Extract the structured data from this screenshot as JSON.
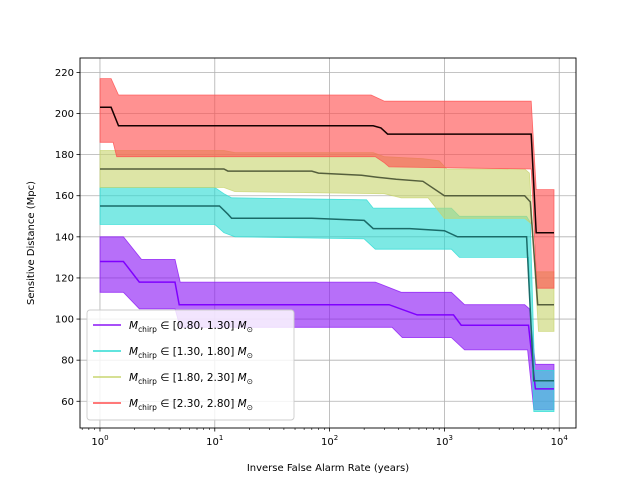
{
  "chart_data": {
    "type": "line",
    "xlabel": "Inverse False Alarm Rate (years)",
    "ylabel": "Sensitive Distance (Mpc)",
    "xscale": "log",
    "xlim": [
      0.67,
      14000
    ],
    "ylim": [
      47,
      227
    ],
    "x_ticks": [
      {
        "value": 1,
        "base": "10",
        "exp": "0"
      },
      {
        "value": 10,
        "base": "10",
        "exp": "1"
      },
      {
        "value": 100,
        "base": "10",
        "exp": "2"
      },
      {
        "value": 1000,
        "base": "10",
        "exp": "3"
      },
      {
        "value": 10000,
        "base": "10",
        "exp": "4"
      }
    ],
    "y_ticks": [
      60,
      80,
      100,
      120,
      140,
      160,
      180,
      200,
      220
    ],
    "grid": true,
    "legend_position": "lower-left",
    "series": [
      {
        "name": "M_chirp ∈ [0.80, 1.30] M_⊙",
        "legend": {
          "sym": "M",
          "sub": "chirp",
          "range": "∈ [0.80, 1.30]",
          "unit_sym": "M",
          "unit_sub": "⊙"
        },
        "line_color": "#7f00ff",
        "band_color": "#8b17f5",
        "points": [
          [
            1,
            128
          ],
          [
            1.6,
            128
          ],
          [
            2.2,
            118
          ],
          [
            4.5,
            118
          ],
          [
            4.9,
            107
          ],
          [
            20,
            107
          ],
          [
            100,
            107
          ],
          [
            330,
            107
          ],
          [
            580,
            102
          ],
          [
            1200,
            102
          ],
          [
            1400,
            97
          ],
          [
            5400,
            97
          ],
          [
            6200,
            66
          ],
          [
            9000,
            66
          ]
        ],
        "upper": [
          [
            1,
            140
          ],
          [
            1.6,
            140
          ],
          [
            2.3,
            129
          ],
          [
            4.5,
            129
          ],
          [
            5,
            118
          ],
          [
            250,
            118
          ],
          [
            420,
            113
          ],
          [
            1150,
            113
          ],
          [
            1500,
            107
          ],
          [
            5000,
            107
          ],
          [
            5500,
            105
          ],
          [
            6200,
            78
          ],
          [
            9000,
            78
          ]
        ],
        "lower": [
          [
            1,
            113
          ],
          [
            1.6,
            113
          ],
          [
            2.2,
            105
          ],
          [
            4.5,
            105
          ],
          [
            5,
            96
          ],
          [
            350,
            96
          ],
          [
            430,
            91
          ],
          [
            1150,
            91
          ],
          [
            1500,
            85
          ],
          [
            5300,
            85
          ],
          [
            6000,
            56
          ],
          [
            9000,
            56
          ]
        ]
      },
      {
        "name": "M_chirp ∈ [1.30, 1.80] M_⊙",
        "legend": {
          "sym": "M",
          "sub": "chirp",
          "range": "∈ [1.30, 1.80]",
          "unit_sym": "M",
          "unit_sub": "⊙"
        },
        "line_color": "#1a6b68",
        "band_color": "#2ddcd4",
        "points": [
          [
            1,
            155
          ],
          [
            11,
            155
          ],
          [
            13,
            151
          ],
          [
            14,
            149
          ],
          [
            70,
            149
          ],
          [
            200,
            148
          ],
          [
            240,
            144
          ],
          [
            500,
            144
          ],
          [
            1000,
            143
          ],
          [
            1300,
            140
          ],
          [
            5200,
            140
          ],
          [
            6000,
            70
          ],
          [
            9000,
            70
          ]
        ],
        "upper": [
          [
            1,
            164
          ],
          [
            10,
            164
          ],
          [
            12,
            161
          ],
          [
            14,
            159
          ],
          [
            210,
            158
          ],
          [
            240,
            154
          ],
          [
            1150,
            154
          ],
          [
            1350,
            150
          ],
          [
            5200,
            150
          ],
          [
            5600,
            147
          ],
          [
            6100,
            75
          ],
          [
            9000,
            75
          ]
        ],
        "lower": [
          [
            1,
            146
          ],
          [
            10,
            146
          ],
          [
            12,
            142
          ],
          [
            15,
            140
          ],
          [
            200,
            139
          ],
          [
            250,
            134
          ],
          [
            1150,
            134
          ],
          [
            1350,
            130
          ],
          [
            5400,
            130
          ],
          [
            6000,
            55
          ],
          [
            9000,
            55
          ]
        ]
      },
      {
        "name": "M_chirp ∈ [1.80, 2.30] M_⊙",
        "legend": {
          "sym": "M",
          "sub": "chirp",
          "range": "∈ [1.80, 2.30]",
          "unit_sym": "M",
          "unit_sub": "⊙"
        },
        "line_color": "#555f3c",
        "band_color": "#c8d570",
        "points": [
          [
            1,
            173
          ],
          [
            12,
            173
          ],
          [
            13,
            172
          ],
          [
            70,
            172
          ],
          [
            80,
            171
          ],
          [
            190,
            170
          ],
          [
            260,
            169
          ],
          [
            380,
            168
          ],
          [
            650,
            167
          ],
          [
            1000,
            160
          ],
          [
            5000,
            160
          ],
          [
            5600,
            157
          ],
          [
            6500,
            107
          ],
          [
            9000,
            107
          ]
        ],
        "upper": [
          [
            1,
            182
          ],
          [
            12,
            182
          ],
          [
            15,
            181
          ],
          [
            240,
            181
          ],
          [
            300,
            179
          ],
          [
            650,
            178
          ],
          [
            900,
            177
          ],
          [
            1050,
            173
          ],
          [
            5000,
            173
          ],
          [
            5500,
            171
          ],
          [
            6200,
            123
          ],
          [
            9000,
            123
          ]
        ],
        "lower": [
          [
            1,
            164
          ],
          [
            12,
            164
          ],
          [
            15,
            162
          ],
          [
            300,
            161
          ],
          [
            420,
            159
          ],
          [
            720,
            159
          ],
          [
            1000,
            149
          ],
          [
            5000,
            149
          ],
          [
            5800,
            146
          ],
          [
            6600,
            94
          ],
          [
            9000,
            94
          ]
        ]
      },
      {
        "name": "M_chirp ∈ [2.30, 2.80] M_⊙",
        "legend": {
          "sym": "M",
          "sub": "chirp",
          "range": "∈ [2.30, 2.80]",
          "unit_sym": "M",
          "unit_sub": "⊙"
        },
        "line_color": "#150000",
        "band_color": "#ff4d4d",
        "points": [
          [
            1,
            203
          ],
          [
            1.25,
            203
          ],
          [
            1.45,
            194
          ],
          [
            240,
            194
          ],
          [
            280,
            193
          ],
          [
            320,
            190
          ],
          [
            5700,
            190
          ],
          [
            6300,
            142
          ],
          [
            9000,
            142
          ]
        ],
        "upper": [
          [
            1,
            217
          ],
          [
            1.25,
            217
          ],
          [
            1.45,
            209
          ],
          [
            230,
            209
          ],
          [
            300,
            206
          ],
          [
            5700,
            206
          ],
          [
            6300,
            163
          ],
          [
            9000,
            163
          ]
        ],
        "lower": [
          [
            1,
            186
          ],
          [
            1.3,
            186
          ],
          [
            1.4,
            179
          ],
          [
            250,
            179
          ],
          [
            300,
            176
          ],
          [
            330,
            174
          ],
          [
            5700,
            173
          ],
          [
            6400,
            115
          ],
          [
            9000,
            115
          ]
        ]
      }
    ]
  }
}
